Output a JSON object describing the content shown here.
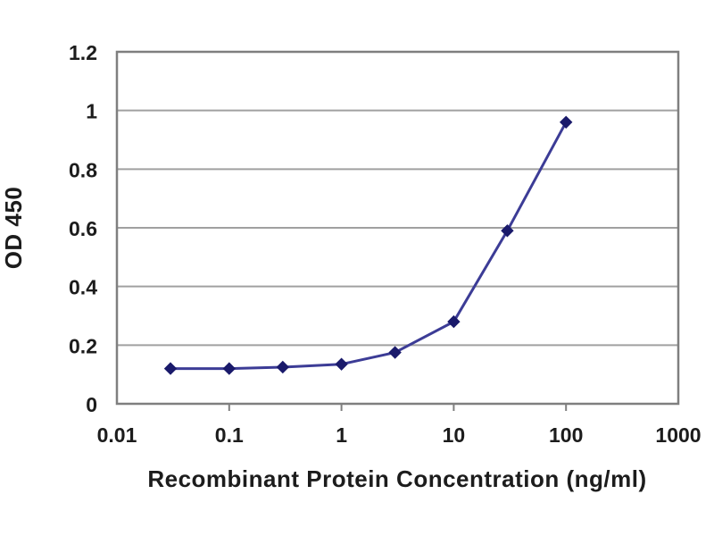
{
  "chart_data": {
    "type": "line",
    "title": "",
    "xlabel": "Recombinant Protein Concentration (ng/ml)",
    "ylabel": "OD 450",
    "x_scale": "log",
    "y_scale": "linear",
    "xlim": [
      0.01,
      1000
    ],
    "ylim": [
      0,
      1.2
    ],
    "x_ticks": [
      0.01,
      0.1,
      1,
      10,
      100,
      1000
    ],
    "x_tick_labels": [
      "0.01",
      "0.1",
      "1",
      "10",
      "100",
      "1000"
    ],
    "y_ticks": [
      0,
      0.2,
      0.4,
      0.6,
      0.8,
      1,
      1.2
    ],
    "y_tick_labels": [
      "0",
      "0.2",
      "0.4",
      "0.6",
      "0.8",
      "1",
      "1.2"
    ],
    "grid": "horizontal",
    "legend_position": "none",
    "series": [
      {
        "x": [
          0.03,
          0.1,
          0.3,
          1,
          3,
          10,
          30,
          100
        ],
        "y": [
          0.12,
          0.12,
          0.125,
          0.135,
          0.175,
          0.28,
          0.59,
          0.96
        ],
        "marker": "diamond"
      }
    ],
    "colors": {
      "line": "#3c3c96",
      "marker": "#1a1a6b",
      "gridline": "#a0a0a0",
      "plot_border": "#7f7f7f",
      "text": "#1c1c1c",
      "background": "#ffffff"
    }
  }
}
